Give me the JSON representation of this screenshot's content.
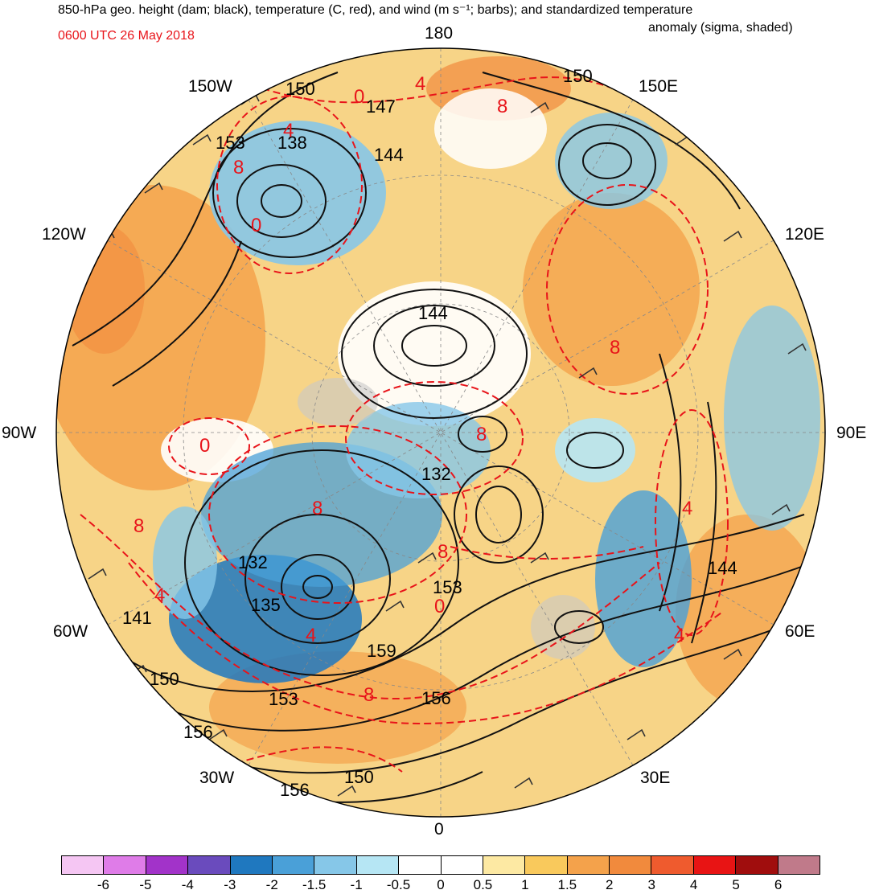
{
  "header": {
    "title_line1": "850-hPa geo. height (dam; black), temperature (C, red), and wind (m s⁻¹; barbs); and standardized temperature",
    "title_line2": "anomaly (sigma, shaded)",
    "valid_time": "0600 UTC 26 May 2018"
  },
  "longitude_labels": {
    "n180": "180",
    "w150": "150W",
    "e150": "150E",
    "w120": "120W",
    "e120": "120E",
    "w90": "90W",
    "e90": "90E",
    "w60": "60W",
    "e60": "60E",
    "w30": "30W",
    "e30": "30E",
    "zero": "0"
  },
  "height_labels": [
    "150",
    "147",
    "144",
    "138",
    "153",
    "144",
    "132",
    "132",
    "135",
    "141",
    "150",
    "153",
    "156",
    "159",
    "156",
    "153",
    "150",
    "156",
    "150",
    "144"
  ],
  "temp_labels": [
    "0",
    "4",
    "8",
    "8",
    "0",
    "8",
    "8",
    "0",
    "8",
    "4",
    "4",
    "8",
    "8",
    "4",
    "8",
    "0",
    "4",
    "4"
  ],
  "colorbar": {
    "colors": [
      "#f5c6f3",
      "#df7ce8",
      "#a233c9",
      "#6a4bbd",
      "#1f78bf",
      "#4aa0d8",
      "#86c7e8",
      "#b6e6f4",
      "#ffffff",
      "#ffffff",
      "#fde9a3",
      "#f9c95c",
      "#f4a24b",
      "#f18a3d",
      "#ef5b2e",
      "#e81414",
      "#a00d0d",
      "#c07a8a"
    ],
    "ticks": [
      "-6",
      "-5",
      "-4",
      "-3",
      "-2",
      "-1.5",
      "-1",
      "-0.5",
      "0",
      "0.5",
      "1",
      "1.5",
      "2",
      "3",
      "4",
      "5",
      "6"
    ]
  }
}
